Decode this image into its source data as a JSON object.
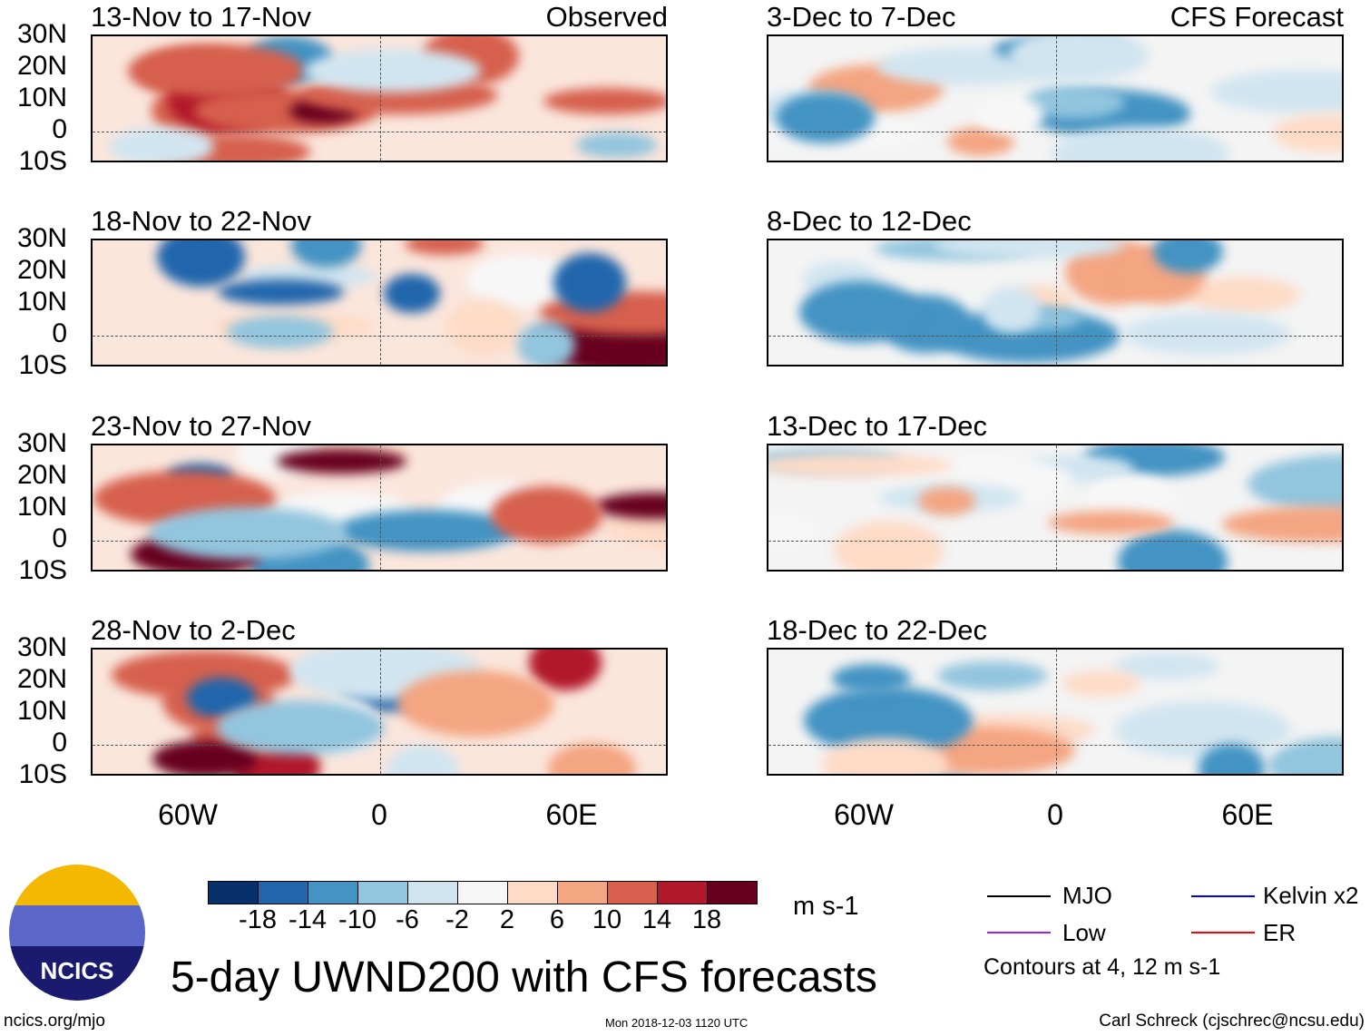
{
  "panels": {
    "left": [
      {
        "title": "13-Nov to 17-Nov",
        "label": "Observed"
      },
      {
        "title": "18-Nov to 22-Nov"
      },
      {
        "title": "23-Nov to 27-Nov"
      },
      {
        "title": "28-Nov to 2-Dec"
      }
    ],
    "right": [
      {
        "title": "3-Dec to 7-Dec",
        "label": "CFS Forecast"
      },
      {
        "title": "8-Dec to 12-Dec"
      },
      {
        "title": "13-Dec to 17-Dec"
      },
      {
        "title": "18-Dec to 22-Dec"
      }
    ]
  },
  "lat_labels": [
    "30N",
    "20N",
    "10N",
    "0",
    "10S"
  ],
  "lon_labels": [
    "60W",
    "0",
    "60E"
  ],
  "colorbar": {
    "colors": [
      "#08306b",
      "#2166ac",
      "#4393c3",
      "#92c5de",
      "#d1e5f0",
      "#f7f7f7",
      "#fddbc7",
      "#f4a582",
      "#d6604d",
      "#b2182b",
      "#67001f"
    ],
    "labels": [
      "-18",
      "-14",
      "-10",
      "-6",
      "-2",
      "2",
      "6",
      "10",
      "14",
      "18"
    ],
    "units": "m s-1"
  },
  "legend": {
    "items": [
      {
        "label": "MJO",
        "color": "#000000"
      },
      {
        "label": "Kelvin x2",
        "color": "#0000ff"
      },
      {
        "label": "Low",
        "color": "#a020f0"
      },
      {
        "label": "ER",
        "color": "#ff0000"
      }
    ],
    "note": "Contours at 4, 12 m s-1"
  },
  "title": "5-day UWND200 with CFS forecasts",
  "logo_text": "NCICS",
  "footer": {
    "url": "ncics.org/mjo",
    "timestamp": "Mon 2018-12-03 1120 UTC",
    "author": "Carl Schreck (cjschrec@ncsu.edu)"
  }
}
